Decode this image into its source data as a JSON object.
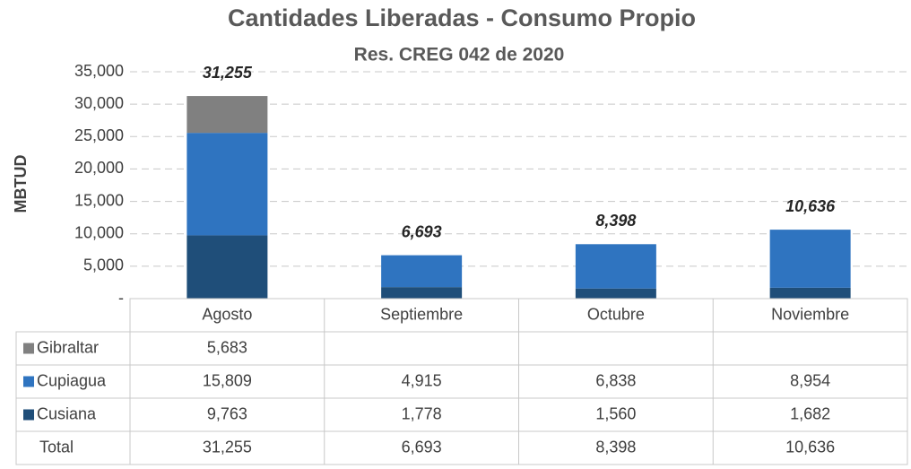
{
  "chart_data": {
    "type": "stacked_bar",
    "title": "Cantidades Liberadas - Consumo Propio",
    "subtitle": "Res. CREG 042 de 2020",
    "y_label": "MBTUD",
    "categories": [
      "Agosto",
      "Septiembre",
      "Octubre",
      "Noviembre"
    ],
    "series": [
      {
        "name": "Gibraltar",
        "color": "#808080",
        "values": [
          5683,
          null,
          null,
          null
        ],
        "value_labels": [
          "5,683",
          null,
          null,
          null
        ]
      },
      {
        "name": "Cupiagua",
        "color": "#2f74c0",
        "values": [
          15809,
          4915,
          6838,
          8954
        ],
        "value_labels": [
          "15,809",
          "4,915",
          "6,838",
          "8,954"
        ]
      },
      {
        "name": "Cusiana",
        "color": "#1f4e79",
        "values": [
          9763,
          1778,
          1560,
          1682
        ],
        "value_labels": [
          "9,763",
          "1,778",
          "1,560",
          "1,682"
        ]
      }
    ],
    "totals": {
      "name": "Total",
      "values": [
        31255,
        6693,
        8398,
        10636
      ],
      "value_labels": [
        "31,255",
        "6,693",
        "8,398",
        "10,636"
      ]
    },
    "ylim": [
      0,
      35000
    ],
    "yticks": [
      {
        "value": 0,
        "label": "-"
      },
      {
        "value": 5000,
        "label": "5,000"
      },
      {
        "value": 10000,
        "label": "10,000"
      },
      {
        "value": 15000,
        "label": "15,000"
      },
      {
        "value": 20000,
        "label": "20,000"
      },
      {
        "value": 25000,
        "label": "25,000"
      },
      {
        "value": 30000,
        "label": "30,000"
      },
      {
        "value": 35000,
        "label": "35,000"
      }
    ],
    "grid": true
  }
}
